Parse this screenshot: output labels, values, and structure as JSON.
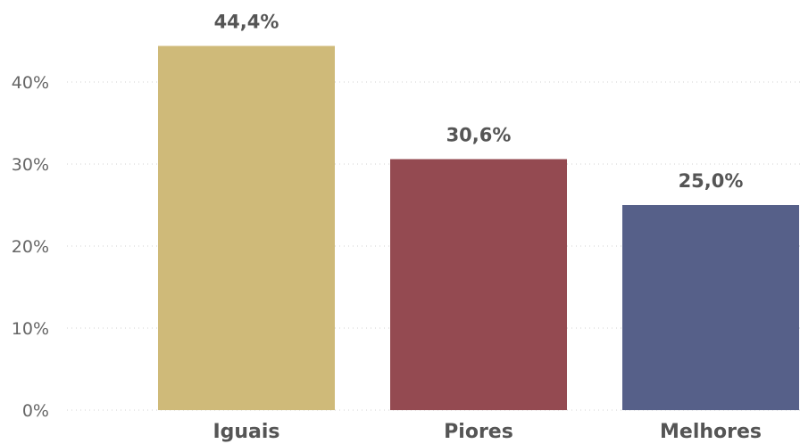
{
  "chart_data": {
    "type": "bar",
    "categories": [
      "Iguais",
      "Piores",
      "Melhores"
    ],
    "values": [
      44.4,
      30.6,
      25.0
    ],
    "value_labels": [
      "44,4%",
      "30,6%",
      "25,0%"
    ],
    "colors": [
      "#CFBA79",
      "#944A51",
      "#566089"
    ],
    "title": "",
    "xlabel": "",
    "ylabel": "",
    "ylim": [
      0,
      50
    ],
    "yticks": [
      0,
      10,
      20,
      30,
      40
    ],
    "ytick_labels": [
      "0%",
      "10%",
      "20%",
      "30%",
      "40%"
    ],
    "grid": true,
    "legend": "none"
  }
}
